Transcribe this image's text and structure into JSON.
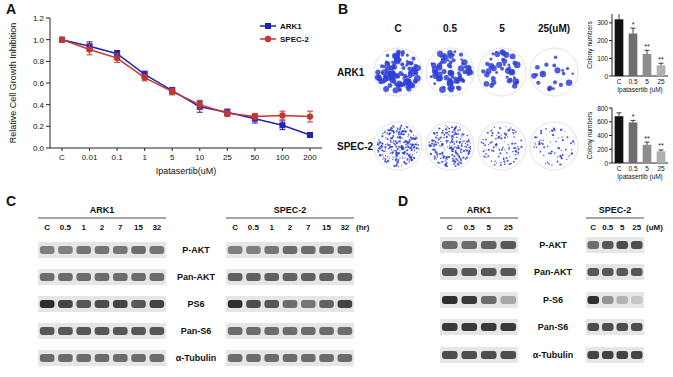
{
  "chart_data": [
    {
      "type": "line",
      "x_label": "Ipatasertib(uM)",
      "y_label": "Relative Cell Growth Inhibition",
      "categories": [
        "C",
        "0.01",
        "0.1",
        "1",
        "5",
        "10",
        "25",
        "50",
        "100",
        "200"
      ],
      "ylim": [
        0,
        1.2
      ],
      "yticks": [
        {
          "value": 0,
          "label": "0.0"
        },
        {
          "value": 0.2,
          "label": "0.2"
        },
        {
          "value": 0.4,
          "label": "0.4"
        },
        {
          "value": 0.6,
          "label": "0.6"
        },
        {
          "value": 0.8,
          "label": "0.8"
        },
        {
          "value": 1,
          "label": "1.0"
        },
        {
          "value": 1.2,
          "label": "1.2"
        }
      ],
      "legend": "top-right",
      "series": [
        {
          "name": "ARK1",
          "color": "#2323b4",
          "marker": "square",
          "values": [
            1.0,
            0.94,
            0.87,
            0.68,
            0.53,
            0.38,
            0.33,
            0.27,
            0.21,
            0.12
          ],
          "errors": [
            0.02,
            0.04,
            0.03,
            0.03,
            0.03,
            0.05,
            0.03,
            0.04,
            0.04,
            0.02
          ]
        },
        {
          "name": "SPEC-2",
          "color": "#c4362f",
          "marker": "circle",
          "values": [
            1.0,
            0.91,
            0.83,
            0.65,
            0.52,
            0.4,
            0.32,
            0.29,
            0.3,
            0.29
          ],
          "errors": [
            0.02,
            0.05,
            0.04,
            0.03,
            0.03,
            0.04,
            0.03,
            0.03,
            0.04,
            0.05
          ]
        }
      ]
    },
    {
      "type": "bar",
      "x_label": "Ipatasertib (uM)",
      "y_label": "Colony numbers",
      "categories": [
        "C",
        "0.5",
        "5",
        "25"
      ],
      "values": [
        320,
        240,
        125,
        60
      ],
      "errors": [
        40,
        30,
        20,
        12
      ],
      "annotations": [
        null,
        "*",
        "**",
        "**"
      ],
      "colors": [
        "#111111",
        "#6e6e6e",
        "#8e8e8e",
        "#b0b0b0"
      ],
      "ylim": [
        0,
        350
      ],
      "yticks": [
        0,
        100,
        200,
        300
      ]
    },
    {
      "type": "bar",
      "x_label": "Ipatasertib (uM)",
      "y_label": "Colony numbers",
      "categories": [
        "C",
        "0.5",
        "5",
        "25"
      ],
      "values": [
        680,
        590,
        265,
        170
      ],
      "errors": [
        50,
        30,
        40,
        20
      ],
      "annotations": [
        null,
        "*",
        "**",
        "**"
      ],
      "colors": [
        "#111111",
        "#6e6e6e",
        "#8e8e8e",
        "#b0b0b0"
      ],
      "ylim": [
        0,
        800
      ],
      "yticks": [
        0,
        200,
        400,
        600,
        800
      ]
    }
  ],
  "panel_labels": [
    "A",
    "B",
    "C",
    "D"
  ],
  "colony": {
    "conditions": [
      "C",
      "0.5",
      "5",
      "25(uM)"
    ],
    "cell_lines": [
      "ARK1",
      "SPEC-2"
    ]
  },
  "blots": [
    {
      "unit": "(hr)",
      "rows": [
        "P-AKT",
        "Pan-AKT",
        "PS6",
        "Pan-S6",
        "α-Tubulin"
      ],
      "groups": [
        {
          "name": "ARK1",
          "lanes": [
            "C",
            "0.5",
            "1",
            "2",
            "7",
            "15",
            "32"
          ],
          "intensity": [
            [
              0.5,
              0.5,
              0.55,
              0.55,
              0.55,
              0.6,
              0.55
            ],
            [
              0.6,
              0.6,
              0.6,
              0.6,
              0.6,
              0.6,
              0.6
            ],
            [
              0.9,
              0.8,
              0.7,
              0.75,
              0.8,
              0.7,
              0.8
            ],
            [
              0.7,
              0.7,
              0.7,
              0.7,
              0.7,
              0.7,
              0.7
            ],
            [
              0.6,
              0.6,
              0.6,
              0.6,
              0.6,
              0.6,
              0.6
            ]
          ]
        },
        {
          "name": "SPEC-2",
          "lanes": [
            "C",
            "0.5",
            "1",
            "2",
            "7",
            "15",
            "32"
          ],
          "intensity": [
            [
              0.5,
              0.5,
              0.55,
              0.6,
              0.6,
              0.6,
              0.6
            ],
            [
              0.65,
              0.65,
              0.65,
              0.65,
              0.65,
              0.65,
              0.65
            ],
            [
              0.9,
              0.75,
              0.7,
              0.6,
              0.55,
              0.65,
              0.8
            ],
            [
              0.6,
              0.6,
              0.6,
              0.6,
              0.6,
              0.6,
              0.6
            ],
            [
              0.6,
              0.6,
              0.6,
              0.6,
              0.6,
              0.6,
              0.6
            ]
          ]
        }
      ]
    },
    {
      "unit": "(uM)",
      "rows": [
        "P-AKT",
        "Pan-AKT",
        "P-S6",
        "Pan-S6",
        "α-Tubulin"
      ],
      "groups": [
        {
          "name": "ARK1",
          "lanes": [
            "C",
            "0.5",
            "5",
            "25"
          ],
          "intensity": [
            [
              0.6,
              0.6,
              0.65,
              0.7
            ],
            [
              0.7,
              0.7,
              0.7,
              0.7
            ],
            [
              0.9,
              0.85,
              0.6,
              0.3
            ],
            [
              0.85,
              0.85,
              0.85,
              0.85
            ],
            [
              0.75,
              0.75,
              0.75,
              0.75
            ]
          ]
        },
        {
          "name": "SPEC-2",
          "lanes": [
            "C",
            "0.5",
            "5",
            "25"
          ],
          "intensity": [
            [
              0.6,
              0.7,
              0.75,
              0.75
            ],
            [
              0.7,
              0.7,
              0.7,
              0.7
            ],
            [
              0.9,
              0.4,
              0.25,
              0.15
            ],
            [
              0.75,
              0.75,
              0.75,
              0.75
            ],
            [
              0.8,
              0.8,
              0.8,
              0.8
            ]
          ]
        }
      ]
    }
  ]
}
